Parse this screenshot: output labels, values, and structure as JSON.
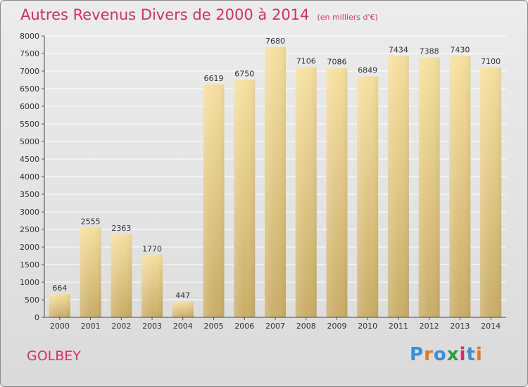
{
  "header": {
    "title": "Autres Revenus Divers de 2000 à 2014",
    "subtitle": "(en milliers d'€)"
  },
  "footer": {
    "commune": "GOLBEY",
    "logo_letters": [
      "P",
      "r",
      "o",
      "x",
      "i",
      "t",
      "i"
    ],
    "logo_colors": [
      "#3a8fd6",
      "#e8751a",
      "#3a8fd6",
      "#2c9c3e",
      "#d1316a",
      "#3a8fd6",
      "#e8751a"
    ]
  },
  "colors": {
    "title": "#d1316a",
    "bar_top": "#f6e0a0",
    "bar_bottom": "#c9ad68"
  },
  "chart_data": {
    "type": "bar",
    "title": "Autres Revenus Divers de 2000 à 2014",
    "subtitle": "(en milliers d'€)",
    "categories": [
      "2000",
      "2001",
      "2002",
      "2003",
      "2004",
      "2005",
      "2006",
      "2007",
      "2008",
      "2009",
      "2010",
      "2011",
      "2012",
      "2013",
      "2014"
    ],
    "values": [
      664,
      2555,
      2363,
      1770,
      447,
      6619,
      6750,
      7680,
      7106,
      7086,
      6849,
      7434,
      7388,
      7430,
      7100
    ],
    "ylim": [
      0,
      8000
    ],
    "yticks": [
      0,
      500,
      1000,
      1500,
      2000,
      2500,
      3000,
      3500,
      4000,
      4500,
      5000,
      5500,
      6000,
      6500,
      7000,
      7500,
      8000
    ],
    "grid": true,
    "data_labels": true,
    "xlabel": "",
    "ylabel": ""
  }
}
